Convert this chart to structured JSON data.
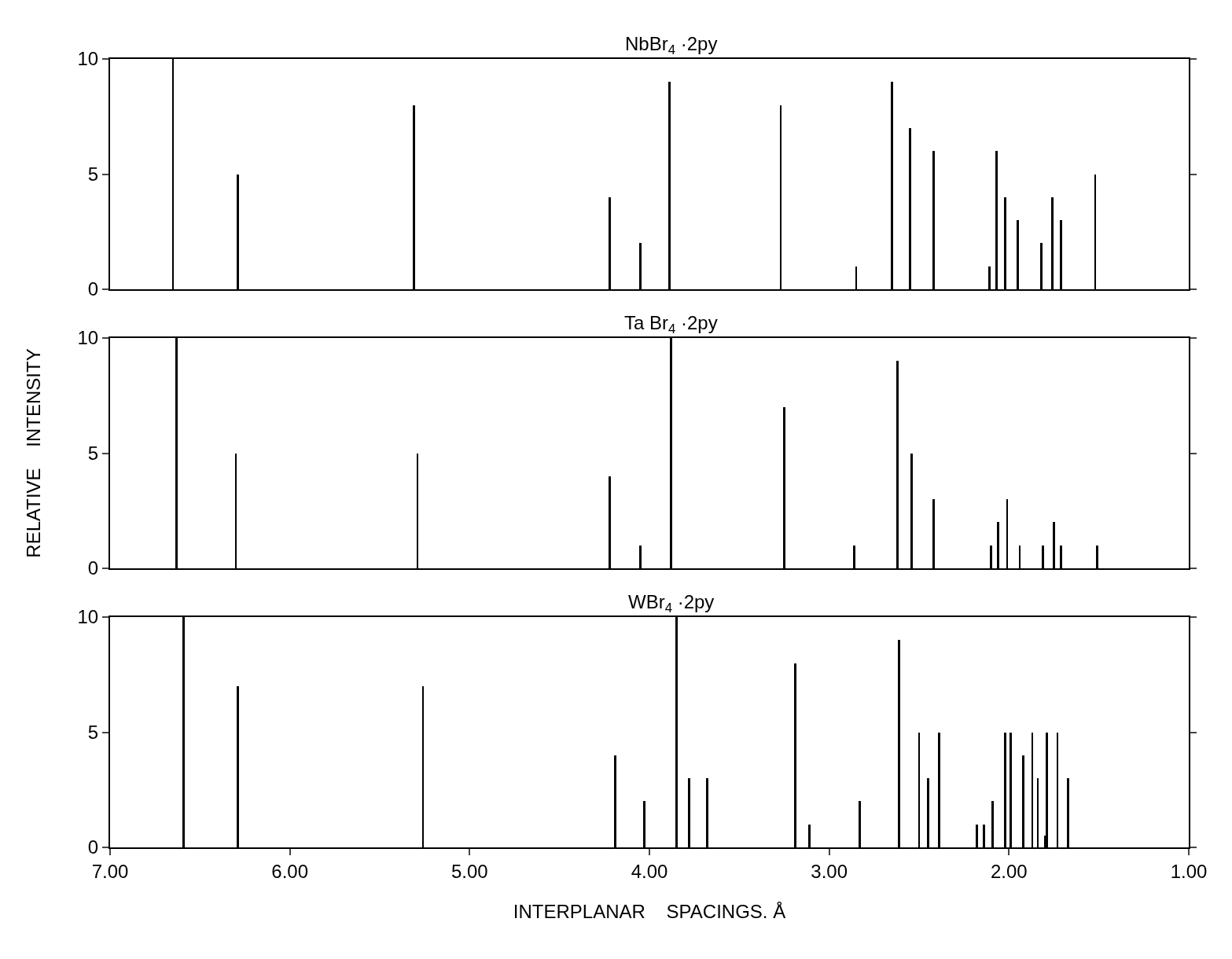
{
  "chart_data": [
    {
      "type": "bar",
      "title": "NbBr$_{4}$ ·2py",
      "xlim": [
        7,
        1
      ],
      "ylim": [
        0,
        10
      ],
      "yticks": [
        0,
        5,
        10
      ],
      "tick_labels": "y",
      "series": [
        {
          "color": "#000000",
          "x": [
            6.65,
            6.29,
            5.31,
            4.22,
            4.05,
            3.89,
            3.27,
            2.85,
            2.65,
            2.55,
            2.42,
            2.11,
            2.07,
            2.02,
            1.95,
            1.82,
            1.76,
            1.71,
            1.52
          ],
          "values": [
            10,
            5,
            8,
            4,
            2,
            9,
            8,
            1,
            9,
            7,
            6,
            1,
            6,
            4,
            3,
            2,
            4,
            3,
            5
          ]
        }
      ]
    },
    {
      "type": "bar",
      "title": "Ta Br$_{4}$ ·2py",
      "ylabel": "RELATIVE    INTENSITY",
      "xlim": [
        7,
        1
      ],
      "ylim": [
        0,
        10
      ],
      "yticks": [
        0,
        5,
        10
      ],
      "tick_labels": "y",
      "series": [
        {
          "color": "#000000",
          "x": [
            6.63,
            6.3,
            5.29,
            4.22,
            4.05,
            3.88,
            3.25,
            2.86,
            2.62,
            2.54,
            2.42,
            2.1,
            2.06,
            2.01,
            1.94,
            1.81,
            1.75,
            1.71,
            1.51
          ],
          "values": [
            10,
            5,
            5,
            4,
            1,
            10,
            7,
            1,
            9,
            5,
            3,
            1,
            2,
            3,
            1,
            1,
            2,
            1,
            1
          ]
        }
      ]
    },
    {
      "type": "bar",
      "title": "WBr$_{4}$ ·2py",
      "xlabel": "INTERPLANAR    SPACINGS. Å",
      "xlim": [
        7,
        1
      ],
      "ylim": [
        0,
        10
      ],
      "yticks": [
        0,
        5,
        10
      ],
      "xticks": [
        {
          "value": 7,
          "label": "7.00"
        },
        {
          "value": 6,
          "label": "6.00"
        },
        {
          "value": 5,
          "label": "5.00"
        },
        {
          "value": 4,
          "label": "4.00"
        },
        {
          "value": 3,
          "label": "3.00"
        },
        {
          "value": 2,
          "label": "2.00"
        },
        {
          "value": 1,
          "label": "1.00"
        }
      ],
      "series": [
        {
          "color": "#000000",
          "x": [
            6.59,
            6.29,
            5.26,
            4.19,
            4.03,
            3.85,
            3.78,
            3.68,
            3.19,
            3.11,
            2.83,
            2.61,
            2.5,
            2.45,
            2.39,
            2.18,
            2.14,
            2.09,
            2.02,
            1.99,
            1.92,
            1.87,
            1.84,
            1.8,
            1.79,
            1.73,
            1.67
          ],
          "values": [
            10,
            7,
            7,
            4,
            2,
            10,
            3,
            3,
            8,
            1,
            2,
            9,
            5,
            3,
            5,
            1,
            1,
            2,
            5,
            5,
            4,
            5,
            3,
            0.5,
            5,
            5,
            3
          ]
        }
      ]
    }
  ]
}
